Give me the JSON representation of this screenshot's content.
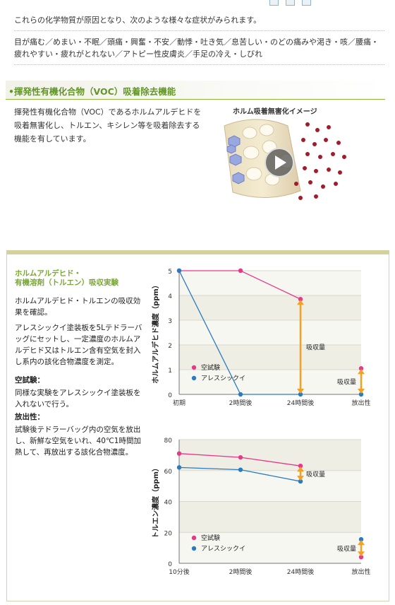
{
  "intro": {
    "line1": "これらの化学物質が原因となり、次のような様々な症状がみられます。",
    "line2": "目が痛む／めまい・不眠／頭痛・興奮・不安／動悸・吐き気／息苦しい・のどの痛みや渇き・咳／腰痛・疲れやすい・疲れがとれない／アトピー性皮膚炎／手足の冷え・しびれ"
  },
  "section": {
    "title": "揮発性有機化合物（VOC）吸着除去機能",
    "description": "揮発性有機化合物（VOC）であるホルムアルデヒドを吸着無害化し、トルエン、キシレン等を吸着除去する機能を有しています。",
    "image_caption": "ホルム吸着無害化イメージ",
    "play_icon": "play-button-icon"
  },
  "experiment": {
    "title_line1": "ホルムアルデヒド・",
    "title_line2": "有機溶剤（トルエン）吸収実験",
    "p1": "ホルムアルデヒド・トルエンの吸収効果を確認。",
    "p2": "アレスシックイ塗装板を5Lテドラーバッグにセットし、一定濃度のホルムアルデヒド又はトルエン含有空気を封入し系内の該化合物濃度を測定。",
    "h_blank": "空試験：",
    "p_blank": "同様な実験をアレスシックイ塗装板を入れないで行う。",
    "h_release": "放出性：",
    "p_release": "試験後テドラーバッグ内の空気を放出し、新鮮な空気をいれ、40℃1時間加熱して、再放出する該化合物濃度。"
  },
  "colors": {
    "blank": "#e8388a",
    "ares": "#2a7bc0",
    "arrow": "#f5a020",
    "green": "#63962a"
  },
  "chart_data": [
    {
      "type": "line",
      "ylabel": "ホルムアルデヒド濃度（ppm）",
      "categories": [
        "初期",
        "2時間後",
        "24時間後",
        "放出性"
      ],
      "ylim": [
        0,
        5
      ],
      "yticks": [
        "0",
        "1",
        "2",
        "3",
        "4",
        "5"
      ],
      "series": [
        {
          "name": "空試験",
          "values": [
            5,
            5,
            3.85,
            1.05
          ]
        },
        {
          "name": "アレスシックイ",
          "values": [
            5,
            0,
            0,
            0
          ]
        }
      ],
      "annotations": [
        "吸収量",
        "吸収量"
      ],
      "legend_position": "bottom-left",
      "grid": true
    },
    {
      "type": "line",
      "ylabel": "トルエン濃度（ppm）",
      "categories": [
        "10分後",
        "2時間後",
        "24時間後",
        "放出性"
      ],
      "ylim": [
        0,
        80
      ],
      "yticks": [
        "0",
        "20",
        "40",
        "60",
        "80"
      ],
      "series": [
        {
          "name": "空試験",
          "values": [
            71,
            68.5,
            63,
            4
          ]
        },
        {
          "name": "アレスシックイ",
          "values": [
            62,
            60.5,
            53,
            15.5
          ]
        }
      ],
      "annotations": [
        "吸収量",
        "吸収量"
      ],
      "legend_position": "bottom-left",
      "grid": true
    }
  ]
}
